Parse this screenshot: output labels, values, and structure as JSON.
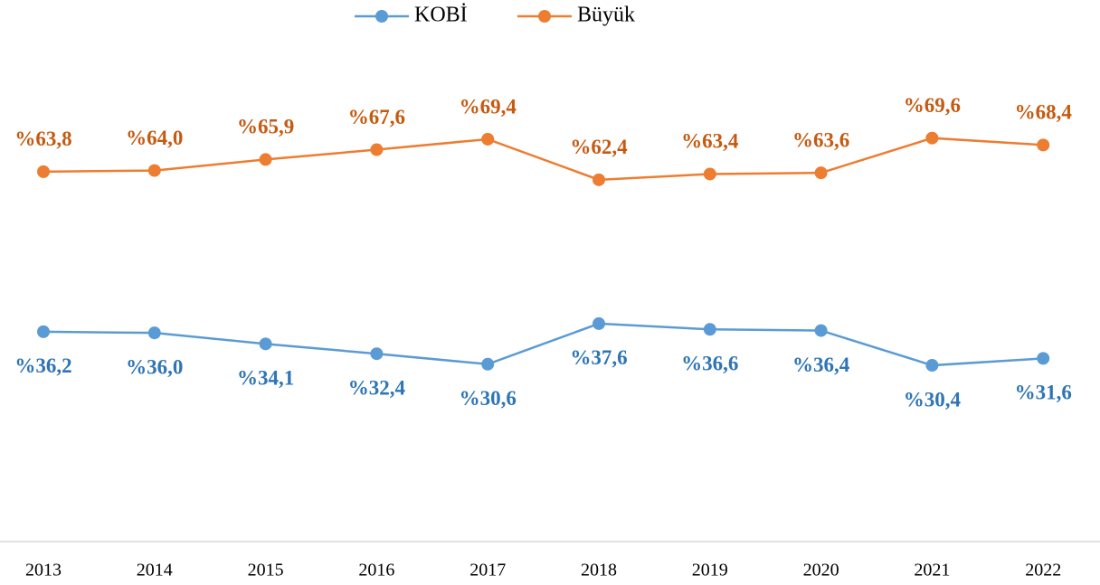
{
  "chart_data": {
    "type": "line",
    "categories": [
      "2013",
      "2014",
      "2015",
      "2016",
      "2017",
      "2018",
      "2019",
      "2020",
      "2021",
      "2022"
    ],
    "series": [
      {
        "name": "KOBİ",
        "color": "#5b9bd5",
        "values": [
          36.2,
          36.0,
          34.1,
          32.4,
          30.6,
          37.6,
          36.6,
          36.4,
          30.4,
          31.6
        ],
        "value_labels": [
          "%36,2",
          "%36,0",
          "%34,1",
          "%32,4",
          "%30,6",
          "%37,6",
          "%36,6",
          "%36,4",
          "%30,4",
          "%31,6"
        ]
      },
      {
        "name": "Büyük",
        "color": "#ed7d31",
        "values": [
          63.8,
          64.0,
          65.9,
          67.6,
          69.4,
          62.4,
          63.4,
          63.6,
          69.6,
          68.4
        ],
        "value_labels": [
          "%63,8",
          "%64,0",
          "%65,9",
          "%67,6",
          "%69,4",
          "%62,4",
          "%63,4",
          "%63,6",
          "%69,6",
          "%68,4"
        ]
      }
    ],
    "ylim": [
      0,
      80
    ],
    "legend": "top"
  }
}
